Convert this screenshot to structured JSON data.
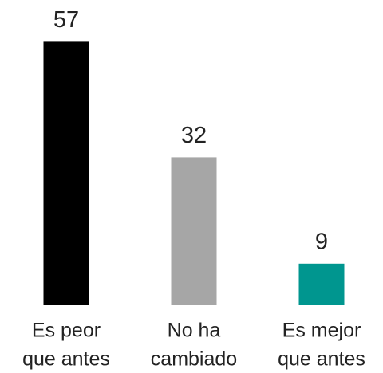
{
  "chart_data": {
    "type": "bar",
    "categories": [
      [
        "Es peor",
        "que antes"
      ],
      [
        "No ha",
        "cambiado"
      ],
      [
        "Es mejor",
        "que antes"
      ]
    ],
    "values": [
      57,
      32,
      9
    ],
    "colors": [
      "#000000",
      "#a6a6a6",
      "#00968f"
    ],
    "ylim": [
      0,
      60
    ]
  }
}
